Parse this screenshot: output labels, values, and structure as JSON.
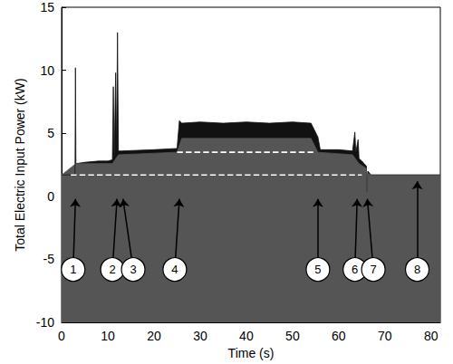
{
  "chart_data": {
    "type": "line",
    "x_label": "Time (s)",
    "y_label": "Total Electric Input Power (kW)",
    "xlim": [
      0,
      82
    ],
    "xticks": [
      0,
      10,
      20,
      30,
      40,
      50,
      60,
      70,
      80
    ],
    "ylim": [
      -10,
      15
    ],
    "yticks": [
      -10,
      -5,
      0,
      5,
      10,
      15
    ],
    "grid": false,
    "series": [
      {
        "type": "area",
        "color": "#111111",
        "x": [
          0,
          2.9,
          3,
          3.1,
          5,
          8,
          10,
          11,
          11.2,
          11.4,
          11.7,
          11.9,
          12.1,
          12.3,
          13,
          20,
          25,
          25.5,
          26,
          30,
          35,
          40,
          45,
          50,
          54,
          55.5,
          56,
          60,
          63,
          63.5,
          63.7,
          64.2,
          64.4,
          65,
          66,
          66.1,
          66.3,
          67,
          82
        ],
        "values": [
          1.7,
          1.7,
          10.2,
          2.6,
          2.7,
          2.8,
          2.8,
          2.9,
          8.7,
          3,
          9.8,
          3.5,
          13,
          3.6,
          3.6,
          3.7,
          3.8,
          6,
          5.8,
          5.9,
          5.8,
          5.9,
          5.8,
          5.9,
          5.8,
          4.7,
          3.7,
          3.7,
          3.6,
          5.1,
          3.5,
          4.5,
          3,
          2.8,
          2.4,
          0.4,
          2,
          1.7,
          1.7
        ]
      },
      {
        "type": "area",
        "color": "#555555",
        "x": [
          0,
          3.1,
          11,
          12.3,
          25,
          26,
          54,
          55.5,
          63,
          64.4,
          66,
          66.1,
          66.3,
          67,
          82
        ],
        "values": [
          1.7,
          2.6,
          2.6,
          3.3,
          3.5,
          4.6,
          4.6,
          3.5,
          3.3,
          2.6,
          2.2,
          0.4,
          1.8,
          1.7,
          1.7
        ]
      },
      {
        "type": "line",
        "color": "#ffffff",
        "line_style": "dashed",
        "x": [
          2,
          65
        ],
        "values": [
          1.7,
          1.7
        ]
      },
      {
        "type": "line",
        "color": "#ffffff",
        "line_style": "dashed",
        "x": [
          25,
          55
        ],
        "values": [
          3.5,
          3.5
        ]
      }
    ],
    "annotations": [
      {
        "label": "1",
        "x": 2.5,
        "y": -5.8,
        "target_x": 3,
        "target_y": -0.2
      },
      {
        "label": "2",
        "x": 11,
        "y": -5.8,
        "target_x": 12,
        "target_y": -0.2
      },
      {
        "label": "3",
        "x": 15.5,
        "y": -5.8,
        "target_x": 13.3,
        "target_y": -0.2
      },
      {
        "label": "4",
        "x": 24.5,
        "y": -5.8,
        "target_x": 25.5,
        "target_y": -0.2
      },
      {
        "label": "5",
        "x": 55.5,
        "y": -5.8,
        "target_x": 55.5,
        "target_y": -0.2
      },
      {
        "label": "6",
        "x": 63.5,
        "y": -5.8,
        "target_x": 64,
        "target_y": -0.2
      },
      {
        "label": "7",
        "x": 67.5,
        "y": -5.8,
        "target_x": 66.2,
        "target_y": -0.2
      },
      {
        "label": "8",
        "x": 77,
        "y": -5.8,
        "target_x": 77,
        "target_y": 1.2
      }
    ]
  }
}
